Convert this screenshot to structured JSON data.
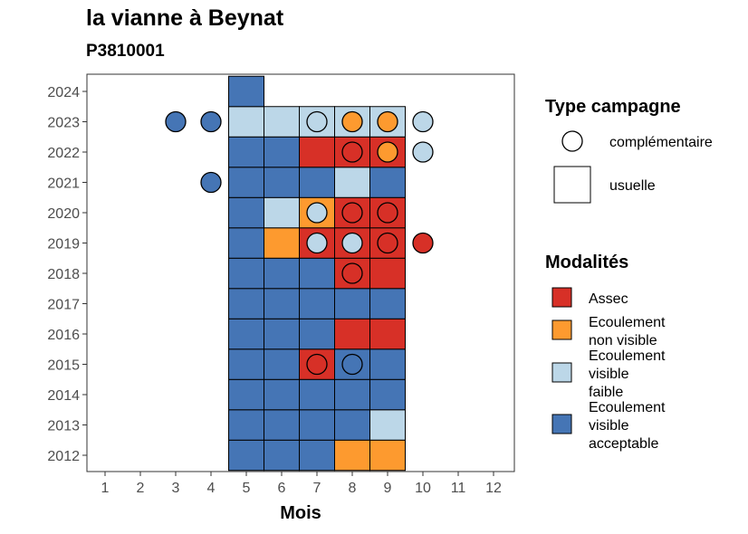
{
  "chart_data": {
    "type": "heatmap",
    "title": "la vianne à Beynat",
    "subtitle": "P3810001",
    "xlabel": "Mois",
    "ylabel": "",
    "x_ticks": [
      "1",
      "2",
      "3",
      "4",
      "5",
      "6",
      "7",
      "8",
      "9",
      "10",
      "11",
      "12"
    ],
    "y_ticks": [
      "2012",
      "2013",
      "2014",
      "2015",
      "2016",
      "2017",
      "2018",
      "2019",
      "2020",
      "2021",
      "2022",
      "2023",
      "2024"
    ],
    "xlim": [
      0.5,
      12.5
    ],
    "ylim": [
      2011.5,
      2024.5
    ],
    "grid": false,
    "legend_position": "right",
    "colors": {
      "Assec": "#d73027",
      "Ecoulement non visible": "#fd9a2f",
      "Ecoulement visible faible": "#bcd7e8",
      "Ecoulement visible acceptable": "#4575b5"
    },
    "legend_type": {
      "title": "Type campagne",
      "items": [
        {
          "key": "complementaire",
          "label": "complémentaire",
          "shape": "circle"
        },
        {
          "key": "usuelle",
          "label": "usuelle",
          "shape": "square"
        }
      ]
    },
    "legend_modalites": {
      "title": "Modalités",
      "items": [
        {
          "key": "Assec",
          "lines": [
            "Assec"
          ]
        },
        {
          "key": "Ecoulement non visible",
          "lines": [
            "Ecoulement",
            "non visible"
          ]
        },
        {
          "key": "Ecoulement visible faible",
          "lines": [
            "Ecoulement",
            "visible",
            "faible"
          ]
        },
        {
          "key": "Ecoulement visible acceptable",
          "lines": [
            "Ecoulement",
            "visible",
            "acceptable"
          ]
        }
      ]
    },
    "usuelle": [
      {
        "year": 2012,
        "month": 5,
        "mod": "Ecoulement visible acceptable"
      },
      {
        "year": 2012,
        "month": 6,
        "mod": "Ecoulement visible acceptable"
      },
      {
        "year": 2012,
        "month": 7,
        "mod": "Ecoulement visible acceptable"
      },
      {
        "year": 2012,
        "month": 8,
        "mod": "Ecoulement non visible"
      },
      {
        "year": 2012,
        "month": 9,
        "mod": "Ecoulement non visible"
      },
      {
        "year": 2013,
        "month": 5,
        "mod": "Ecoulement visible acceptable"
      },
      {
        "year": 2013,
        "month": 6,
        "mod": "Ecoulement visible acceptable"
      },
      {
        "year": 2013,
        "month": 7,
        "mod": "Ecoulement visible acceptable"
      },
      {
        "year": 2013,
        "month": 8,
        "mod": "Ecoulement visible acceptable"
      },
      {
        "year": 2013,
        "month": 9,
        "mod": "Ecoulement visible faible"
      },
      {
        "year": 2014,
        "month": 5,
        "mod": "Ecoulement visible acceptable"
      },
      {
        "year": 2014,
        "month": 6,
        "mod": "Ecoulement visible acceptable"
      },
      {
        "year": 2014,
        "month": 7,
        "mod": "Ecoulement visible acceptable"
      },
      {
        "year": 2014,
        "month": 8,
        "mod": "Ecoulement visible acceptable"
      },
      {
        "year": 2014,
        "month": 9,
        "mod": "Ecoulement visible acceptable"
      },
      {
        "year": 2015,
        "month": 5,
        "mod": "Ecoulement visible acceptable"
      },
      {
        "year": 2015,
        "month": 6,
        "mod": "Ecoulement visible acceptable"
      },
      {
        "year": 2015,
        "month": 7,
        "mod": "Assec"
      },
      {
        "year": 2015,
        "month": 8,
        "mod": "Ecoulement visible acceptable"
      },
      {
        "year": 2015,
        "month": 9,
        "mod": "Ecoulement visible acceptable"
      },
      {
        "year": 2016,
        "month": 5,
        "mod": "Ecoulement visible acceptable"
      },
      {
        "year": 2016,
        "month": 6,
        "mod": "Ecoulement visible acceptable"
      },
      {
        "year": 2016,
        "month": 7,
        "mod": "Ecoulement visible acceptable"
      },
      {
        "year": 2016,
        "month": 8,
        "mod": "Assec"
      },
      {
        "year": 2016,
        "month": 9,
        "mod": "Assec"
      },
      {
        "year": 2017,
        "month": 5,
        "mod": "Ecoulement visible acceptable"
      },
      {
        "year": 2017,
        "month": 6,
        "mod": "Ecoulement visible acceptable"
      },
      {
        "year": 2017,
        "month": 7,
        "mod": "Ecoulement visible acceptable"
      },
      {
        "year": 2017,
        "month": 8,
        "mod": "Ecoulement visible acceptable"
      },
      {
        "year": 2017,
        "month": 9,
        "mod": "Ecoulement visible acceptable"
      },
      {
        "year": 2018,
        "month": 5,
        "mod": "Ecoulement visible acceptable"
      },
      {
        "year": 2018,
        "month": 6,
        "mod": "Ecoulement visible acceptable"
      },
      {
        "year": 2018,
        "month": 7,
        "mod": "Ecoulement visible acceptable"
      },
      {
        "year": 2018,
        "month": 8,
        "mod": "Assec"
      },
      {
        "year": 2018,
        "month": 9,
        "mod": "Assec"
      },
      {
        "year": 2019,
        "month": 5,
        "mod": "Ecoulement visible acceptable"
      },
      {
        "year": 2019,
        "month": 6,
        "mod": "Ecoulement non visible"
      },
      {
        "year": 2019,
        "month": 7,
        "mod": "Assec"
      },
      {
        "year": 2019,
        "month": 8,
        "mod": "Assec"
      },
      {
        "year": 2019,
        "month": 9,
        "mod": "Assec"
      },
      {
        "year": 2020,
        "month": 5,
        "mod": "Ecoulement visible acceptable"
      },
      {
        "year": 2020,
        "month": 6,
        "mod": "Ecoulement visible faible"
      },
      {
        "year": 2020,
        "month": 7,
        "mod": "Ecoulement non visible"
      },
      {
        "year": 2020,
        "month": 8,
        "mod": "Assec"
      },
      {
        "year": 2020,
        "month": 9,
        "mod": "Assec"
      },
      {
        "year": 2021,
        "month": 5,
        "mod": "Ecoulement visible acceptable"
      },
      {
        "year": 2021,
        "month": 6,
        "mod": "Ecoulement visible acceptable"
      },
      {
        "year": 2021,
        "month": 7,
        "mod": "Ecoulement visible acceptable"
      },
      {
        "year": 2021,
        "month": 8,
        "mod": "Ecoulement visible faible"
      },
      {
        "year": 2021,
        "month": 9,
        "mod": "Ecoulement visible acceptable"
      },
      {
        "year": 2022,
        "month": 5,
        "mod": "Ecoulement visible acceptable"
      },
      {
        "year": 2022,
        "month": 6,
        "mod": "Ecoulement visible acceptable"
      },
      {
        "year": 2022,
        "month": 7,
        "mod": "Assec"
      },
      {
        "year": 2022,
        "month": 8,
        "mod": "Assec"
      },
      {
        "year": 2022,
        "month": 9,
        "mod": "Assec"
      },
      {
        "year": 2023,
        "month": 5,
        "mod": "Ecoulement visible faible"
      },
      {
        "year": 2023,
        "month": 6,
        "mod": "Ecoulement visible faible"
      },
      {
        "year": 2023,
        "month": 7,
        "mod": "Ecoulement visible faible"
      },
      {
        "year": 2023,
        "month": 8,
        "mod": "Ecoulement visible faible"
      },
      {
        "year": 2023,
        "month": 9,
        "mod": "Ecoulement visible faible"
      },
      {
        "year": 2024,
        "month": 5,
        "mod": "Ecoulement visible acceptable"
      }
    ],
    "complementaire": [
      {
        "year": 2023,
        "month": 3,
        "mod": "Ecoulement visible acceptable"
      },
      {
        "year": 2023,
        "month": 4,
        "mod": "Ecoulement visible acceptable"
      },
      {
        "year": 2023,
        "month": 7,
        "mod": "Ecoulement visible faible"
      },
      {
        "year": 2023,
        "month": 8,
        "mod": "Ecoulement non visible"
      },
      {
        "year": 2023,
        "month": 9,
        "mod": "Ecoulement non visible"
      },
      {
        "year": 2023,
        "month": 10,
        "mod": "Ecoulement visible faible"
      },
      {
        "year": 2022,
        "month": 8,
        "mod": "Assec"
      },
      {
        "year": 2022,
        "month": 9,
        "mod": "Ecoulement non visible"
      },
      {
        "year": 2022,
        "month": 10,
        "mod": "Ecoulement visible faible"
      },
      {
        "year": 2021,
        "month": 4,
        "mod": "Ecoulement visible acceptable"
      },
      {
        "year": 2020,
        "month": 7,
        "mod": "Ecoulement visible faible"
      },
      {
        "year": 2020,
        "month": 8,
        "mod": "Assec"
      },
      {
        "year": 2020,
        "month": 9,
        "mod": "Assec"
      },
      {
        "year": 2019,
        "month": 7,
        "mod": "Ecoulement visible faible"
      },
      {
        "year": 2019,
        "month": 8,
        "mod": "Ecoulement visible faible"
      },
      {
        "year": 2019,
        "month": 9,
        "mod": "Assec"
      },
      {
        "year": 2019,
        "month": 10,
        "mod": "Assec"
      },
      {
        "year": 2018,
        "month": 8,
        "mod": "Assec"
      },
      {
        "year": 2015,
        "month": 7,
        "mod": "Assec"
      },
      {
        "year": 2015,
        "month": 8,
        "mod": "Ecoulement visible acceptable"
      }
    ]
  }
}
